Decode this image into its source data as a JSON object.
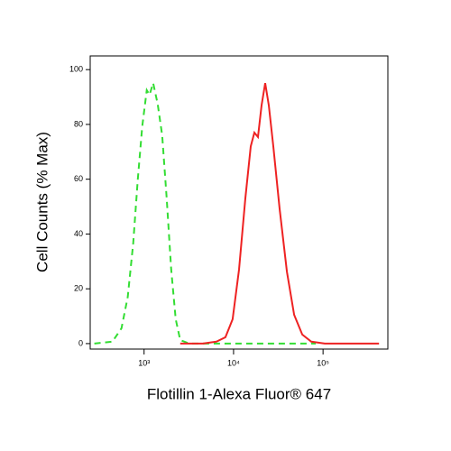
{
  "chart_data": {
    "type": "line",
    "xlabel": "Flotillin 1-Alexa Fluor® 647",
    "ylabel": "Cell Counts (% Max)",
    "xscale": "log",
    "xlim": [
      250,
      530000
    ],
    "ylim": [
      -2,
      105
    ],
    "xticks": [
      {
        "value": 1000,
        "label": "10³"
      },
      {
        "value": 10000,
        "label": "10⁴"
      },
      {
        "value": 100000,
        "label": "10⁵"
      }
    ],
    "yticks": [
      0,
      20,
      40,
      60,
      80,
      100
    ],
    "series": [
      {
        "color": "#33dd33",
        "dash": true,
        "x": [
          278,
          443,
          559,
          657,
          757,
          850,
          955,
          1072,
          1150,
          1262,
          1419,
          1592,
          1790,
          2010,
          2258,
          2536,
          3199,
          83000
        ],
        "values": [
          0,
          0.7,
          5.6,
          17,
          36.7,
          59.7,
          79.3,
          92.5,
          90.8,
          95.1,
          87.5,
          76,
          53,
          27,
          8.9,
          1.3,
          0,
          0
        ]
      },
      {
        "color": "#ee2222",
        "dash": false,
        "x": [
          2536,
          4538,
          6427,
          8110,
          9770,
          11500,
          13530,
          15560,
          17070,
          18740,
          20560,
          22570,
          24780,
          27800,
          32730,
          39450,
          47540,
          58610,
          73920,
          104700,
          422600
        ],
        "values": [
          0,
          0,
          0.7,
          2.3,
          8.9,
          27,
          53,
          72,
          77,
          75.4,
          87,
          95.1,
          87,
          72,
          49.2,
          26.2,
          10.5,
          3.3,
          0.7,
          0,
          0
        ]
      }
    ]
  }
}
